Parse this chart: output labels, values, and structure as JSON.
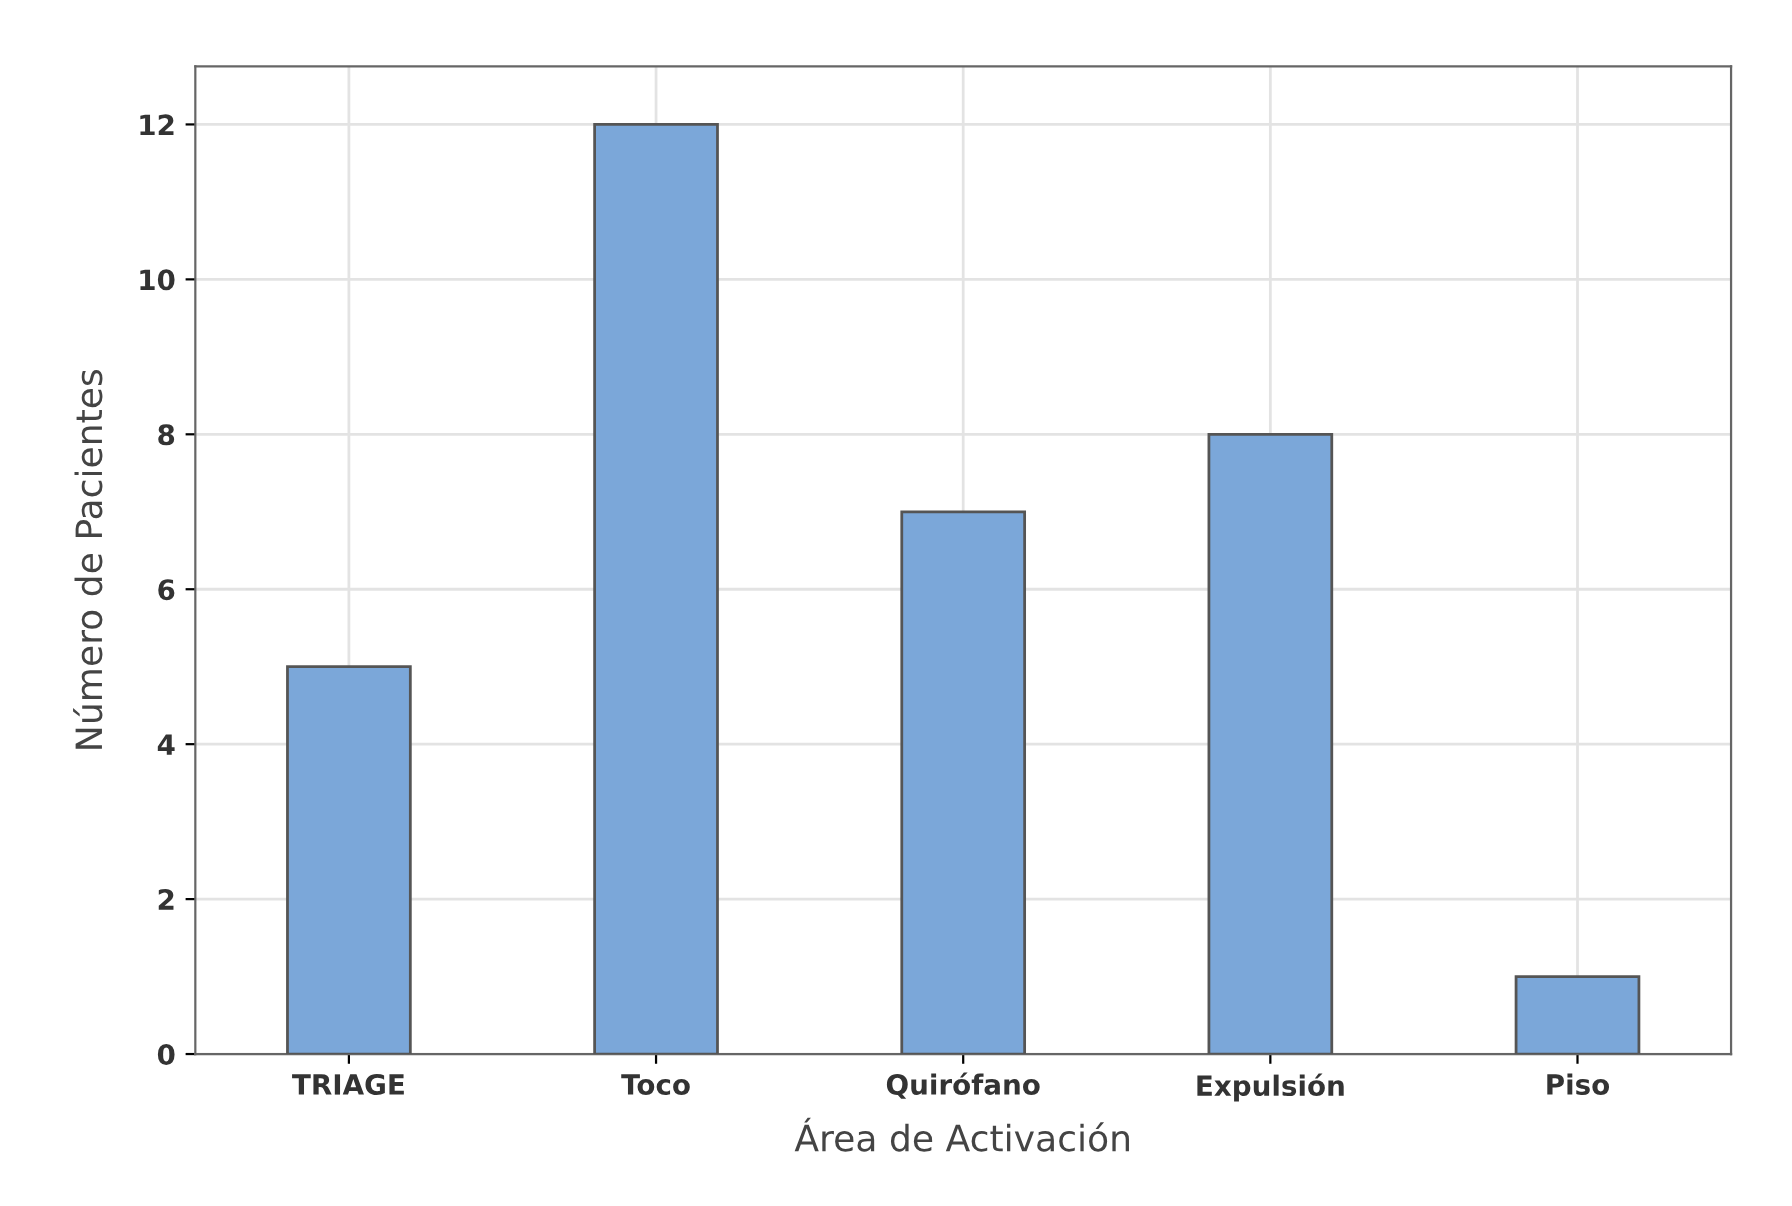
{
  "chart_data": {
    "type": "bar",
    "xlabel": "Área de Activación",
    "ylabel": "Número de Pacientes",
    "categories": [
      "TRIAGE",
      "Toco",
      "Quirófano",
      "Expulsión",
      "Piso"
    ],
    "values": [
      5,
      12,
      7,
      8,
      1
    ],
    "color": "#7ba7d9",
    "ylim": [
      0,
      12.75
    ],
    "yticks": [
      0,
      2,
      4,
      6,
      8,
      10,
      12
    ],
    "grid": true
  }
}
